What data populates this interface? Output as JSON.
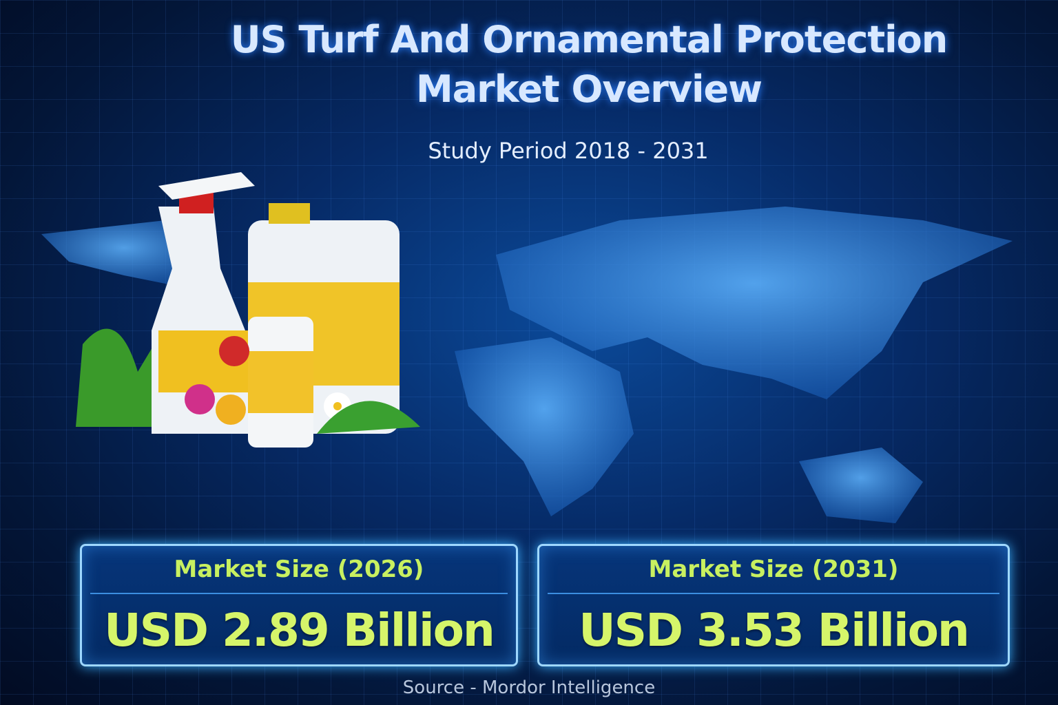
{
  "title": "US Turf And Ornamental Protection Market Overview",
  "study_period": "Study Period 2018 - 2031",
  "cards": [
    {
      "label": "Market Size (2026)",
      "value": "USD 2.89 Billion"
    },
    {
      "label": "Market Size (2031)",
      "value": "USD 3.53 Billion"
    }
  ],
  "source": "Source - Mordor Intelligence",
  "colors": {
    "accent": "#d6f56a",
    "background": "#062a66",
    "border": "#9fd8ff"
  }
}
